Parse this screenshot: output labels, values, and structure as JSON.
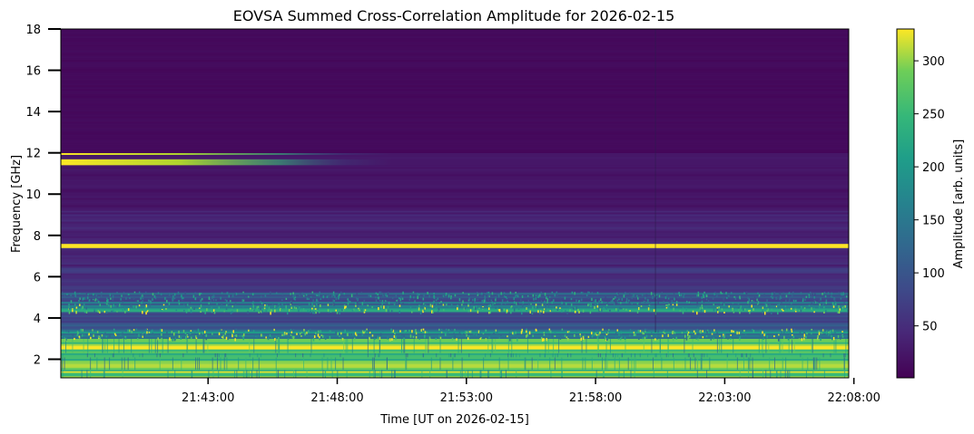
{
  "chart_data": {
    "type": "heatmap",
    "title": "EOVSA Summed Cross-Correlation Amplitude for 2026-02-15",
    "xlabel": "Time [UT on 2026-02-15]",
    "ylabel": "Frequency [GHz]",
    "colorbar_label": "Amplitude [arb. units]",
    "colormap": "viridis",
    "x_range_minutes_from_2140": [
      -2.7,
      27.8
    ],
    "x_ticks": [
      {
        "minute": 3,
        "label": "21:43:00"
      },
      {
        "minute": 8,
        "label": "21:48:00"
      },
      {
        "minute": 13,
        "label": "21:53:00"
      },
      {
        "minute": 18,
        "label": "21:58:00"
      },
      {
        "minute": 23,
        "label": "22:03:00"
      },
      {
        "minute": 28,
        "label": "22:08:00"
      }
    ],
    "ylim": [
      1.1,
      18.0
    ],
    "y_ticks": [
      2,
      4,
      6,
      8,
      10,
      12,
      14,
      16,
      18
    ],
    "clim": [
      1,
      330
    ],
    "colorbar_ticks": [
      50,
      100,
      150,
      200,
      250,
      300
    ],
    "bands": [
      {
        "f0": 1.1,
        "f1": 1.5,
        "value": 300,
        "texture": "strong"
      },
      {
        "f0": 1.5,
        "f1": 2.1,
        "value": 290,
        "texture": "strong"
      },
      {
        "f0": 2.1,
        "f1": 2.3,
        "value": 250,
        "texture": "strong"
      },
      {
        "f0": 2.3,
        "f1": 3.0,
        "value": 320,
        "texture": "strong"
      },
      {
        "f0": 3.0,
        "f1": 3.5,
        "value": 200,
        "texture": "speckle"
      },
      {
        "f0": 3.5,
        "f1": 4.3,
        "value": 95,
        "texture": "mild"
      },
      {
        "f0": 4.3,
        "f1": 4.7,
        "value": 200,
        "texture": "speckle"
      },
      {
        "f0": 4.7,
        "f1": 5.3,
        "value": 140,
        "texture": "speckle"
      },
      {
        "f0": 5.3,
        "f1": 6.5,
        "value": 55,
        "texture": "mild"
      },
      {
        "f0": 6.5,
        "f1": 7.4,
        "value": 45,
        "texture": "mild"
      },
      {
        "f0": 7.4,
        "f1": 7.6,
        "value": 330,
        "texture": "line"
      },
      {
        "f0": 7.6,
        "f1": 9.2,
        "value": 38,
        "texture": "mild"
      },
      {
        "f0": 9.2,
        "f1": 11.4,
        "value": 22,
        "texture": "mild"
      },
      {
        "f0": 11.4,
        "f1": 11.7,
        "value": 320,
        "texture": "fade"
      },
      {
        "f0": 11.7,
        "f1": 11.9,
        "value": 25,
        "texture": "mild"
      },
      {
        "f0": 11.9,
        "f1": 12.0,
        "value": 300,
        "texture": "fade"
      },
      {
        "f0": 12.0,
        "f1": 18.0,
        "value": 10,
        "texture": "mild"
      }
    ]
  }
}
